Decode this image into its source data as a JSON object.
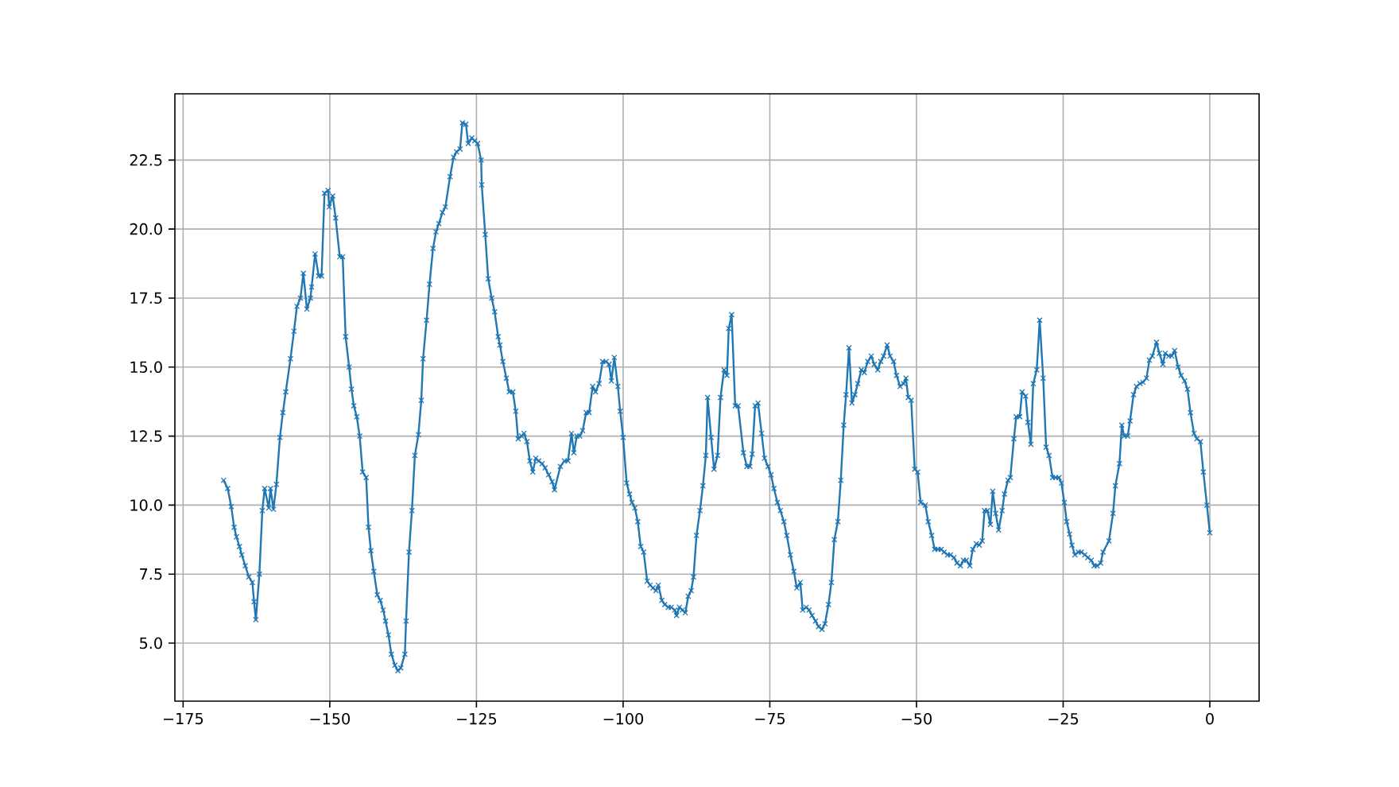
{
  "chart_data": {
    "type": "line",
    "color": "#1f77b4",
    "marker": "cross",
    "line_style": "solid",
    "grid": true,
    "xlim": [
      -176.4,
      8.4
    ],
    "ylim": [
      2.9,
      24.9
    ],
    "xticks": [
      {
        "value": -175,
        "label": "−175"
      },
      {
        "value": -150,
        "label": "−150"
      },
      {
        "value": -125,
        "label": "−125"
      },
      {
        "value": -100,
        "label": "−100"
      },
      {
        "value": -75,
        "label": "−75"
      },
      {
        "value": -50,
        "label": "−50"
      },
      {
        "value": -25,
        "label": "−25"
      },
      0
    ],
    "yticks": [
      {
        "value": 5,
        "label": "5.0"
      },
      {
        "value": 7.5,
        "label": "7.5"
      },
      {
        "value": 10,
        "label": "10.0"
      },
      {
        "value": 12.5,
        "label": "12.5"
      },
      {
        "value": 15,
        "label": "15.0"
      },
      {
        "value": 17.5,
        "label": "17.5"
      },
      {
        "value": 20,
        "label": "20.0"
      },
      {
        "value": 22.5,
        "label": "22.5"
      }
    ],
    "x": [
      -168.1,
      -167.4,
      -166.8,
      -166.3,
      -165.9,
      -165.4,
      -165,
      -164.4,
      -163.8,
      -163.2,
      -162.9,
      -162.6,
      -162,
      -161.5,
      -161.1,
      -160.4,
      -160.1,
      -159.6,
      -159.1,
      -158.5,
      -158,
      -157.5,
      -156.7,
      -156.1,
      -155.6,
      -155,
      -154.5,
      -153.9,
      -153.3,
      -153.1,
      -152.5,
      -151.9,
      -151.4,
      -150.9,
      -150.3,
      -150.1,
      -149.5,
      -149,
      -148.3,
      -147.8,
      -147.3,
      -146.7,
      -146.3,
      -145.9,
      -145.4,
      -144.9,
      -144.4,
      -143.8,
      -143.4,
      -143,
      -142.5,
      -141.9,
      -141.4,
      -140.9,
      -140.5,
      -140,
      -139.5,
      -138.9,
      -138.4,
      -137.9,
      -137.2,
      -137,
      -136.5,
      -136,
      -135.5,
      -134.9,
      -134.4,
      -134.1,
      -133.5,
      -133,
      -132.4,
      -131.9,
      -131.4,
      -130.8,
      -130.3,
      -129.5,
      -128.9,
      -128.4,
      -127.8,
      -127.4,
      -126.8,
      -126.4,
      -125.8,
      -125.3,
      -124.8,
      -124.2,
      -124.1,
      -123.5,
      -123,
      -122.4,
      -121.9,
      -121.3,
      -121,
      -120.5,
      -119.9,
      -119.4,
      -118.8,
      -118.3,
      -117.9,
      -117.3,
      -116.9,
      -116.4,
      -115.9,
      -115.4,
      -114.9,
      -114.4,
      -113.8,
      -113.3,
      -112.7,
      -112.1,
      -111.7,
      -110.7,
      -110,
      -109.4,
      -108.8,
      -108.4,
      -107.9,
      -107.4,
      -106.9,
      -106.3,
      -105.8,
      -105.2,
      -104.7,
      -104.1,
      -103.5,
      -102.9,
      -102.4,
      -102,
      -101.5,
      -100.9,
      -100.5,
      -100,
      -99.4,
      -98.9,
      -98.5,
      -98,
      -97.5,
      -97,
      -96.5,
      -95.9,
      -95.4,
      -94.9,
      -94.4,
      -94,
      -93.4,
      -92.9,
      -92.3,
      -91.8,
      -91.2,
      -90.9,
      -90.4,
      -89.9,
      -89.4,
      -88.9,
      -88.4,
      -88,
      -87.5,
      -86.9,
      -86.4,
      -85.9,
      -85.6,
      -85,
      -84.5,
      -83.9,
      -83.4,
      -82.8,
      -82.3,
      -82,
      -81.5,
      -80.9,
      -80.4,
      -79.5,
      -78.9,
      -78.4,
      -78,
      -77.5,
      -77,
      -76.4,
      -75.9,
      -75.3,
      -74.8,
      -74.3,
      -73.7,
      -73.2,
      -72.6,
      -72.1,
      -71.5,
      -70.9,
      -70.4,
      -69.8,
      -69.4,
      -68.8,
      -68.3,
      -67.8,
      -67.2,
      -66.7,
      -66.1,
      -65.6,
      -65,
      -64.5,
      -64,
      -63.4,
      -62.9,
      -62.4,
      -62,
      -61.5,
      -61,
      -60.5,
      -60,
      -59.4,
      -58.9,
      -58.3,
      -57.7,
      -57.2,
      -56.6,
      -56.1,
      -55.6,
      -55,
      -54.5,
      -53.9,
      -53.4,
      -52.8,
      -52.2,
      -51.8,
      -51.4,
      -50.9,
      -50.3,
      -49.8,
      -49.3,
      -48.5,
      -48,
      -47.4,
      -46.9,
      -46.3,
      -45.8,
      -45.3,
      -44.7,
      -44.2,
      -43.6,
      -43.1,
      -42.5,
      -42,
      -41.5,
      -40.9,
      -40.4,
      -39.8,
      -39.3,
      -38.8,
      -38.4,
      -37.9,
      -37.4,
      -37,
      -36.5,
      -36,
      -35.4,
      -35,
      -34.4,
      -34,
      -33.4,
      -33,
      -32.4,
      -32,
      -31.4,
      -31,
      -30.5,
      -30.1,
      -29.5,
      -29,
      -28.4,
      -27.9,
      -27.4,
      -26.8,
      -26.3,
      -25.7,
      -25.3,
      -24.8,
      -24.4,
      -23.9,
      -23.5,
      -23,
      -22.4,
      -21.9,
      -21.3,
      -20.8,
      -20.2,
      -19.7,
      -19.2,
      -18.6,
      -18.2,
      -17.2,
      -16.5,
      -16.1,
      -15.4,
      -15,
      -14.6,
      -14,
      -13.6,
      -13,
      -12.5,
      -11.9,
      -11.4,
      -10.8,
      -10.3,
      -9.8,
      -9.1,
      -8.6,
      -8,
      -7.6,
      -7,
      -6.5,
      -6,
      -5.4,
      -4.9,
      -4.3,
      -3.8,
      -3.3,
      -2.7,
      -2.2,
      -1.6,
      -1.1,
      -0.5,
      0
    ],
    "values": [
      10.9,
      10.6,
      9.95,
      9.2,
      8.85,
      8.5,
      8.2,
      7.8,
      7.4,
      7.2,
      6.5,
      5.85,
      7.5,
      9.8,
      10.6,
      9.9,
      10.6,
      9.85,
      10.75,
      12.45,
      13.35,
      14.1,
      15.3,
      16.3,
      17.2,
      17.5,
      18.4,
      17.1,
      17.5,
      17.9,
      19.1,
      18.3,
      18.3,
      21.3,
      21.4,
      20.8,
      21.2,
      20.4,
      19,
      19,
      16.1,
      15,
      14.2,
      13.6,
      13.2,
      12.5,
      11.2,
      11,
      9.2,
      8.35,
      7.6,
      6.75,
      6.55,
      6.2,
      5.8,
      5.3,
      4.6,
      4.2,
      4,
      4.1,
      4.6,
      5.8,
      8.3,
      9.8,
      11.8,
      12.55,
      13.8,
      15.3,
      16.7,
      18,
      19.3,
      19.9,
      20.2,
      20.6,
      20.8,
      21.9,
      22.6,
      22.8,
      22.9,
      23.85,
      23.8,
      23.1,
      23.3,
      23.2,
      23.1,
      22.5,
      21.6,
      19.8,
      18.2,
      17.5,
      17,
      16.1,
      15.8,
      15.2,
      14.6,
      14.1,
      14.1,
      13.4,
      12.4,
      12.5,
      12.6,
      12.3,
      11.6,
      11.2,
      11.7,
      11.6,
      11.5,
      11.35,
      11.1,
      10.85,
      10.55,
      11.4,
      11.6,
      11.6,
      12.6,
      11.9,
      12.5,
      12.5,
      12.7,
      13.35,
      13.35,
      14.3,
      14.1,
      14.4,
      15.2,
      15.2,
      15.1,
      14.5,
      15.35,
      14.3,
      13.4,
      12.45,
      10.8,
      10.4,
      10.1,
      9.9,
      9.4,
      8.5,
      8.3,
      7.25,
      7.1,
      7,
      6.9,
      7.1,
      6.55,
      6.4,
      6.3,
      6.3,
      6.2,
      6,
      6.3,
      6.2,
      6.1,
      6.7,
      6.9,
      7.4,
      8.9,
      9.8,
      10.7,
      11.8,
      13.9,
      12.45,
      11.3,
      11.8,
      13.9,
      14.9,
      14.7,
      16.4,
      16.9,
      13.6,
      13.6,
      11.9,
      11.4,
      11.4,
      11.85,
      13.6,
      13.7,
      12.6,
      11.7,
      11.4,
      11.1,
      10.6,
      10.1,
      9.8,
      9.4,
      8.9,
      8.2,
      7.6,
      7,
      7.2,
      6.2,
      6.3,
      6.2,
      6,
      5.8,
      5.6,
      5.5,
      5.7,
      6.4,
      7.2,
      8.75,
      9.4,
      10.9,
      12.9,
      14,
      15.7,
      13.7,
      14,
      14.4,
      14.9,
      14.8,
      15.2,
      15.4,
      15.1,
      14.9,
      15.2,
      15.4,
      15.8,
      15.4,
      15.2,
      14.7,
      14.3,
      14.4,
      14.6,
      13.9,
      13.8,
      11.3,
      11.2,
      10.1,
      10,
      9.4,
      8.9,
      8.4,
      8.4,
      8.4,
      8.3,
      8.2,
      8.2,
      8.1,
      7.9,
      7.8,
      8,
      8,
      7.8,
      8.4,
      8.6,
      8.55,
      8.7,
      9.8,
      9.8,
      9.3,
      10.5,
      9.7,
      9.1,
      9.8,
      10.4,
      10.9,
      11,
      12.4,
      13.2,
      13.2,
      14.1,
      13.95,
      13,
      12.2,
      14.4,
      14.9,
      16.7,
      14.6,
      12.1,
      11.8,
      11,
      11,
      11,
      10.8,
      10.1,
      9.4,
      8.95,
      8.55,
      8.2,
      8.3,
      8.3,
      8.2,
      8.1,
      8,
      7.8,
      7.8,
      7.9,
      8.3,
      8.7,
      9.7,
      10.7,
      11.5,
      12.9,
      12.5,
      12.5,
      13.05,
      14,
      14.3,
      14.4,
      14.45,
      14.6,
      15.25,
      15.4,
      15.9,
      15.5,
      15.1,
      15.5,
      15.4,
      15.4,
      15.6,
      15,
      14.7,
      14.5,
      14.2,
      13.35,
      12.6,
      12.4,
      12.3,
      11.2,
      10,
      9
    ]
  }
}
